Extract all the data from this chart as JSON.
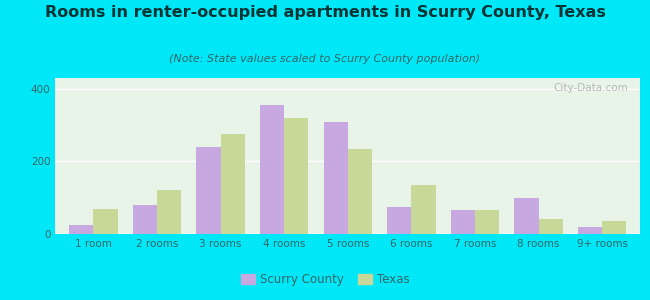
{
  "title": "Rooms in renter-occupied apartments in Scurry County, Texas",
  "subtitle": "(Note: State values scaled to Scurry County population)",
  "categories": [
    "1 room",
    "2 rooms",
    "3 rooms",
    "4 rooms",
    "5 rooms",
    "6 rooms",
    "7 rooms",
    "8 rooms",
    "9+ rooms"
  ],
  "scurry_values": [
    25,
    80,
    240,
    355,
    310,
    75,
    65,
    100,
    20
  ],
  "texas_values": [
    70,
    120,
    275,
    320,
    235,
    135,
    65,
    40,
    35
  ],
  "scurry_color": "#c8a8e0",
  "texas_color": "#c8d898",
  "bg_outer": "#00e8f8",
  "bg_plot": "#e8f4e8",
  "ylim": [
    0,
    430
  ],
  "yticks": [
    0,
    200,
    400
  ],
  "title_fontsize": 11.5,
  "subtitle_fontsize": 8,
  "tick_fontsize": 7.5,
  "legend_labels": [
    "Scurry County",
    "Texas"
  ],
  "watermark": "City-Data.com",
  "bar_width": 0.38
}
